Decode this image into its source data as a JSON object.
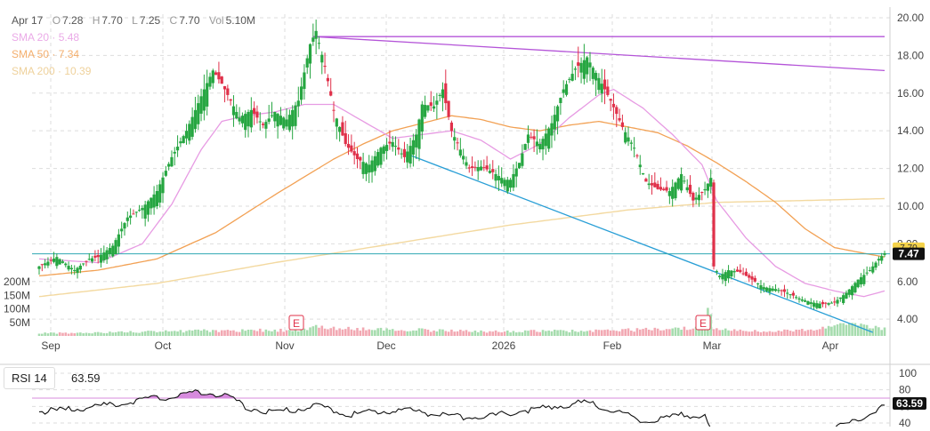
{
  "legend": {
    "date": "Apr 17",
    "open_label": "O",
    "open": "7.28",
    "high_label": "H",
    "high": "7.70",
    "low_label": "L",
    "low": "7.25",
    "close_label": "C",
    "close": "7.70",
    "vol_label": "Vol",
    "vol": "5.10M",
    "sma20": "SMA 20 · 5.48",
    "sma50": "SMA 50 · 7.34",
    "sma200": "SMA 200 · 10.39"
  },
  "colors": {
    "up": "#26a641",
    "down": "#e0314a",
    "sma20": "#e79be3",
    "sma50": "#f2a154",
    "sma200": "#f3d9a0",
    "trend_down": "#2a9fd6",
    "trend_upper": "#b454d8",
    "hline": "#2fa7b2",
    "rsi_line": "#111111",
    "rsi_fill": "#d78bde",
    "grid": "#dddddd"
  },
  "rsi": {
    "label": "RSI 14",
    "value": "63.59"
  },
  "chart_data": {
    "type": "candlestick",
    "x_tick_labels": [
      "Sep",
      "Oct",
      "Nov",
      "Dec",
      "2026",
      "Feb",
      "Mar",
      "Apr"
    ],
    "y_tick_labels": [
      "20.00",
      "18.00",
      "16.00",
      "14.00",
      "12.00",
      "10.00",
      "8.00",
      "6.00",
      "4.00"
    ],
    "ylim": [
      3.3,
      20.0
    ],
    "current_price": "7.47",
    "current_price_alt": "7.70",
    "volume_tick_labels": [
      "200M",
      "150M",
      "100M",
      "50M"
    ],
    "volume_ylim": [
      0,
      230
    ],
    "earnings_markers": [
      {
        "label": "E",
        "month": "Nov"
      },
      {
        "label": "E",
        "month": "Feb"
      }
    ],
    "rsi_tick_labels": [
      "100",
      "80",
      "60",
      "40"
    ],
    "rsi_ylim": [
      40,
      100
    ],
    "rsi_overbought": 70,
    "anchors": {
      "close": [
        [
          0,
          6.8
        ],
        [
          6,
          7.3
        ],
        [
          12,
          6.6
        ],
        [
          17,
          7.2
        ],
        [
          20,
          7.3
        ],
        [
          25,
          7.9
        ],
        [
          30,
          9.4
        ],
        [
          35,
          9.9
        ],
        [
          40,
          10.8
        ],
        [
          45,
          12.6
        ],
        [
          50,
          14.0
        ],
        [
          53,
          15.1
        ],
        [
          56,
          16.2
        ],
        [
          59,
          17.2
        ],
        [
          62,
          16.5
        ],
        [
          65,
          15.6
        ],
        [
          68,
          14.7
        ],
        [
          72,
          15.1
        ],
        [
          76,
          14.3
        ],
        [
          80,
          15.0
        ],
        [
          84,
          14.6
        ],
        [
          88,
          15.6
        ],
        [
          92,
          18.6
        ],
        [
          94,
          19.3
        ],
        [
          97,
          17.4
        ],
        [
          100,
          15.1
        ],
        [
          104,
          13.3
        ],
        [
          108,
          12.5
        ],
        [
          112,
          12.2
        ],
        [
          116,
          13.1
        ],
        [
          120,
          13.4
        ],
        [
          124,
          12.6
        ],
        [
          128,
          13.8
        ],
        [
          130,
          15.4
        ],
        [
          134,
          15.3
        ],
        [
          137,
          16.2
        ],
        [
          140,
          14.0
        ],
        [
          143,
          13.0
        ],
        [
          146,
          12.0
        ],
        [
          150,
          12.1
        ],
        [
          154,
          11.8
        ],
        [
          158,
          11.4
        ],
        [
          160,
          11.4
        ],
        [
          163,
          12.3
        ],
        [
          166,
          13.8
        ],
        [
          170,
          13.3
        ],
        [
          174,
          14.4
        ],
        [
          178,
          16.2
        ],
        [
          182,
          17.3
        ],
        [
          186,
          17.9
        ],
        [
          190,
          16.8
        ],
        [
          194,
          15.6
        ],
        [
          198,
          14.2
        ],
        [
          202,
          13.1
        ],
        [
          206,
          11.3
        ],
        [
          210,
          10.9
        ],
        [
          214,
          10.8
        ],
        [
          218,
          11.7
        ],
        [
          222,
          10.3
        ],
        [
          226,
          10.9
        ],
        [
          228,
          11.5
        ],
        [
          229,
          6.8
        ],
        [
          231,
          6.3
        ],
        [
          234,
          6.6
        ],
        [
          238,
          6.5
        ],
        [
          242,
          6.1
        ],
        [
          246,
          5.7
        ],
        [
          250,
          5.6
        ],
        [
          254,
          5.4
        ],
        [
          258,
          5.1
        ],
        [
          262,
          4.9
        ],
        [
          266,
          4.8
        ],
        [
          270,
          4.9
        ],
        [
          274,
          5.4
        ],
        [
          278,
          6.1
        ],
        [
          282,
          6.6
        ],
        [
          285,
          7.2
        ],
        [
          287,
          7.5
        ]
      ],
      "sma20": [
        [
          0,
          7.2
        ],
        [
          20,
          7.0
        ],
        [
          35,
          8.0
        ],
        [
          45,
          10.1
        ],
        [
          55,
          13.0
        ],
        [
          62,
          14.5
        ],
        [
          70,
          14.8
        ],
        [
          80,
          15.0
        ],
        [
          90,
          15.4
        ],
        [
          100,
          15.4
        ],
        [
          110,
          14.5
        ],
        [
          120,
          13.6
        ],
        [
          130,
          13.8
        ],
        [
          140,
          14.0
        ],
        [
          150,
          13.5
        ],
        [
          160,
          12.5
        ],
        [
          170,
          13.3
        ],
        [
          180,
          14.7
        ],
        [
          190,
          15.9
        ],
        [
          195,
          16.2
        ],
        [
          205,
          15.2
        ],
        [
          215,
          13.8
        ],
        [
          225,
          12.2
        ],
        [
          230,
          10.3
        ],
        [
          240,
          8.3
        ],
        [
          250,
          6.8
        ],
        [
          260,
          5.9
        ],
        [
          270,
          5.5
        ],
        [
          280,
          5.2
        ],
        [
          287,
          5.5
        ]
      ],
      "sma50": [
        [
          0,
          6.3
        ],
        [
          20,
          6.6
        ],
        [
          40,
          7.2
        ],
        [
          60,
          8.6
        ],
        [
          80,
          10.6
        ],
        [
          100,
          12.5
        ],
        [
          110,
          13.3
        ],
        [
          120,
          14.0
        ],
        [
          130,
          14.4
        ],
        [
          140,
          14.8
        ],
        [
          150,
          14.6
        ],
        [
          160,
          14.2
        ],
        [
          170,
          14.0
        ],
        [
          180,
          14.3
        ],
        [
          190,
          14.5
        ],
        [
          200,
          14.2
        ],
        [
          210,
          13.9
        ],
        [
          220,
          13.2
        ],
        [
          230,
          12.3
        ],
        [
          240,
          11.3
        ],
        [
          250,
          10.2
        ],
        [
          260,
          8.8
        ],
        [
          270,
          7.8
        ],
        [
          280,
          7.5
        ],
        [
          287,
          7.3
        ]
      ],
      "sma200": [
        [
          0,
          5.2
        ],
        [
          40,
          5.9
        ],
        [
          80,
          7.0
        ],
        [
          120,
          8.0
        ],
        [
          160,
          9.0
        ],
        [
          200,
          9.8
        ],
        [
          230,
          10.2
        ],
        [
          260,
          10.3
        ],
        [
          287,
          10.4
        ]
      ],
      "volume": [
        [
          0,
          10
        ],
        [
          20,
          12
        ],
        [
          40,
          16
        ],
        [
          60,
          20
        ],
        [
          90,
          22
        ],
        [
          94,
          45
        ],
        [
          96,
          30
        ],
        [
          110,
          26
        ],
        [
          130,
          22
        ],
        [
          150,
          16
        ],
        [
          170,
          18
        ],
        [
          190,
          20
        ],
        [
          210,
          24
        ],
        [
          225,
          28
        ],
        [
          227,
          110
        ],
        [
          229,
          25
        ],
        [
          240,
          18
        ],
        [
          260,
          22
        ],
        [
          275,
          40
        ],
        [
          287,
          26
        ]
      ],
      "rsi": [
        [
          0,
          56
        ],
        [
          10,
          58
        ],
        [
          25,
          64
        ],
        [
          35,
          70
        ],
        [
          45,
          74
        ],
        [
          55,
          80
        ],
        [
          62,
          76
        ],
        [
          65,
          72
        ],
        [
          70,
          61
        ],
        [
          80,
          55
        ],
        [
          90,
          60
        ],
        [
          95,
          63
        ],
        [
          105,
          52
        ],
        [
          115,
          56
        ],
        [
          125,
          58
        ],
        [
          135,
          52
        ],
        [
          145,
          49
        ],
        [
          155,
          51
        ],
        [
          165,
          57
        ],
        [
          175,
          62
        ],
        [
          185,
          67
        ],
        [
          190,
          63
        ],
        [
          196,
          56
        ],
        [
          205,
          43
        ],
        [
          212,
          48
        ],
        [
          220,
          52
        ],
        [
          226,
          50
        ],
        [
          228,
          28
        ],
        [
          235,
          34
        ],
        [
          245,
          32
        ],
        [
          255,
          33
        ],
        [
          265,
          34
        ],
        [
          272,
          38
        ],
        [
          278,
          45
        ],
        [
          283,
          57
        ],
        [
          287,
          63
        ]
      ]
    },
    "trendlines": [
      {
        "from": [
          93,
          19.0
        ],
        "to": [
          287,
          17.2
        ]
      },
      {
        "from": [
          93,
          19.0
        ],
        "to": [
          287,
          19.0
        ]
      },
      {
        "from": [
          126,
          12.7
        ],
        "to": [
          283,
          3.3
        ]
      }
    ],
    "horizontal_line": 7.47
  }
}
